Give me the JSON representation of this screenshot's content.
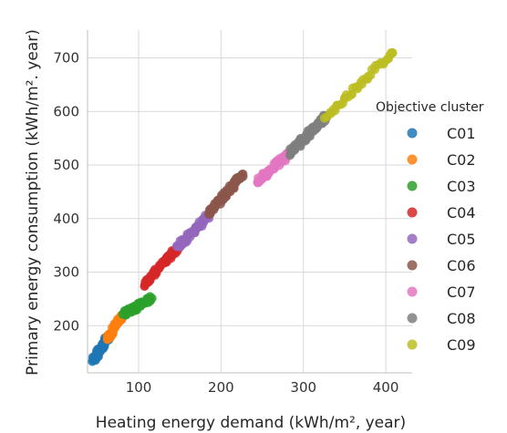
{
  "chart_data": {
    "type": "scatter",
    "xlabel": "Heating energy demand (kWh/m², year)",
    "ylabel": "Primary energy consumption (kWh/m². year)",
    "xlim": [
      38,
      432
    ],
    "ylim": [
      112,
      752
    ],
    "x_ticks": [
      100,
      200,
      300,
      400
    ],
    "y_ticks": [
      200,
      300,
      400,
      500,
      600,
      700
    ],
    "grid": true,
    "legend": {
      "title": "Objective cluster",
      "placement": "right"
    },
    "series": [
      {
        "name": "C01",
        "color": "#1f77b4",
        "x_range": [
          45,
          63
        ],
        "y_range": [
          135,
          178
        ],
        "n": 55
      },
      {
        "name": "C02",
        "color": "#ff7f0e",
        "x_range": [
          63,
          82
        ],
        "y_range": [
          178,
          222
        ],
        "n": 40
      },
      {
        "name": "C03",
        "color": "#2ca02c",
        "x_range": [
          82,
          115
        ],
        "y_range": [
          222,
          250
        ],
        "n": 60
      },
      {
        "name": "C04",
        "color": "#d62728",
        "x_range": [
          107,
          147
        ],
        "y_range": [
          278,
          345
        ],
        "n": 60
      },
      {
        "name": "C05",
        "color": "#9467bd",
        "x_range": [
          147,
          188
        ],
        "y_range": [
          345,
          412
        ],
        "n": 55
      },
      {
        "name": "C06",
        "color": "#8c564b",
        "x_range": [
          186,
          226
        ],
        "y_range": [
          412,
          482
        ],
        "n": 70
      },
      {
        "name": "C07",
        "color": "#e377c2",
        "x_range": [
          243,
          283
        ],
        "y_range": [
          468,
          522
        ],
        "n": 55
      },
      {
        "name": "C08",
        "color": "#7f7f7f",
        "x_range": [
          283,
          327
        ],
        "y_range": [
          522,
          590
        ],
        "n": 70
      },
      {
        "name": "C09",
        "color": "#bcbd22",
        "x_range": [
          327,
          410
        ],
        "y_range": [
          590,
          713
        ],
        "n": 40
      }
    ]
  }
}
